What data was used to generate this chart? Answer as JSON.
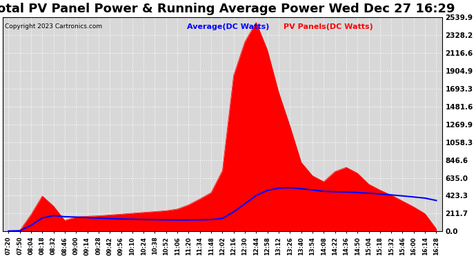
{
  "title": "Total PV Panel Power & Running Average Power Wed Dec 27 16:29",
  "copyright": "Copyright 2023 Cartronics.com",
  "legend_avg": "Average(DC Watts)",
  "legend_pv": "PV Panels(DC Watts)",
  "y_ticks": [
    0.0,
    211.7,
    423.3,
    635.0,
    846.6,
    1058.3,
    1269.9,
    1481.6,
    1693.3,
    1904.9,
    2116.6,
    2328.2,
    2539.9
  ],
  "ylim": [
    0,
    2539.9
  ],
  "background_color": "#ffffff",
  "plot_bg_color": "#d8d8d8",
  "grid_color": "#ffffff",
  "pv_fill_color": "#ff0000",
  "avg_line_color": "#0000ff",
  "title_fontsize": 13,
  "x_labels": [
    "07:20",
    "07:50",
    "08:04",
    "08:18",
    "08:32",
    "08:46",
    "09:00",
    "09:14",
    "09:28",
    "09:42",
    "09:56",
    "10:10",
    "10:24",
    "10:38",
    "10:52",
    "11:06",
    "11:20",
    "11:34",
    "11:48",
    "12:02",
    "12:16",
    "12:30",
    "12:44",
    "12:58",
    "13:12",
    "13:26",
    "13:40",
    "13:54",
    "14:08",
    "14:22",
    "14:36",
    "14:50",
    "15:04",
    "15:18",
    "15:32",
    "15:46",
    "16:00",
    "16:14",
    "16:28"
  ],
  "pv_values": [
    5,
    10,
    200,
    420,
    300,
    130,
    170,
    180,
    185,
    195,
    205,
    215,
    225,
    235,
    245,
    265,
    315,
    385,
    460,
    720,
    1850,
    2250,
    2480,
    2150,
    1650,
    1250,
    820,
    660,
    590,
    710,
    760,
    690,
    560,
    490,
    430,
    360,
    290,
    210,
    30
  ],
  "running_avg": [
    5.0,
    7.5,
    71.7,
    158.8,
    187.0,
    174.3,
    170.0,
    164.0,
    157.2,
    152.1,
    147.9,
    144.3,
    141.5,
    139.1,
    137.1,
    135.7,
    135.6,
    137.0,
    140.0,
    154.5,
    231.2,
    327.4,
    425.8,
    486.1,
    513.8,
    518.0,
    505.9,
    490.7,
    475.6,
    470.0,
    466.5,
    460.9,
    453.0,
    443.4,
    432.7,
    420.9,
    408.3,
    394.5,
    366.8
  ]
}
